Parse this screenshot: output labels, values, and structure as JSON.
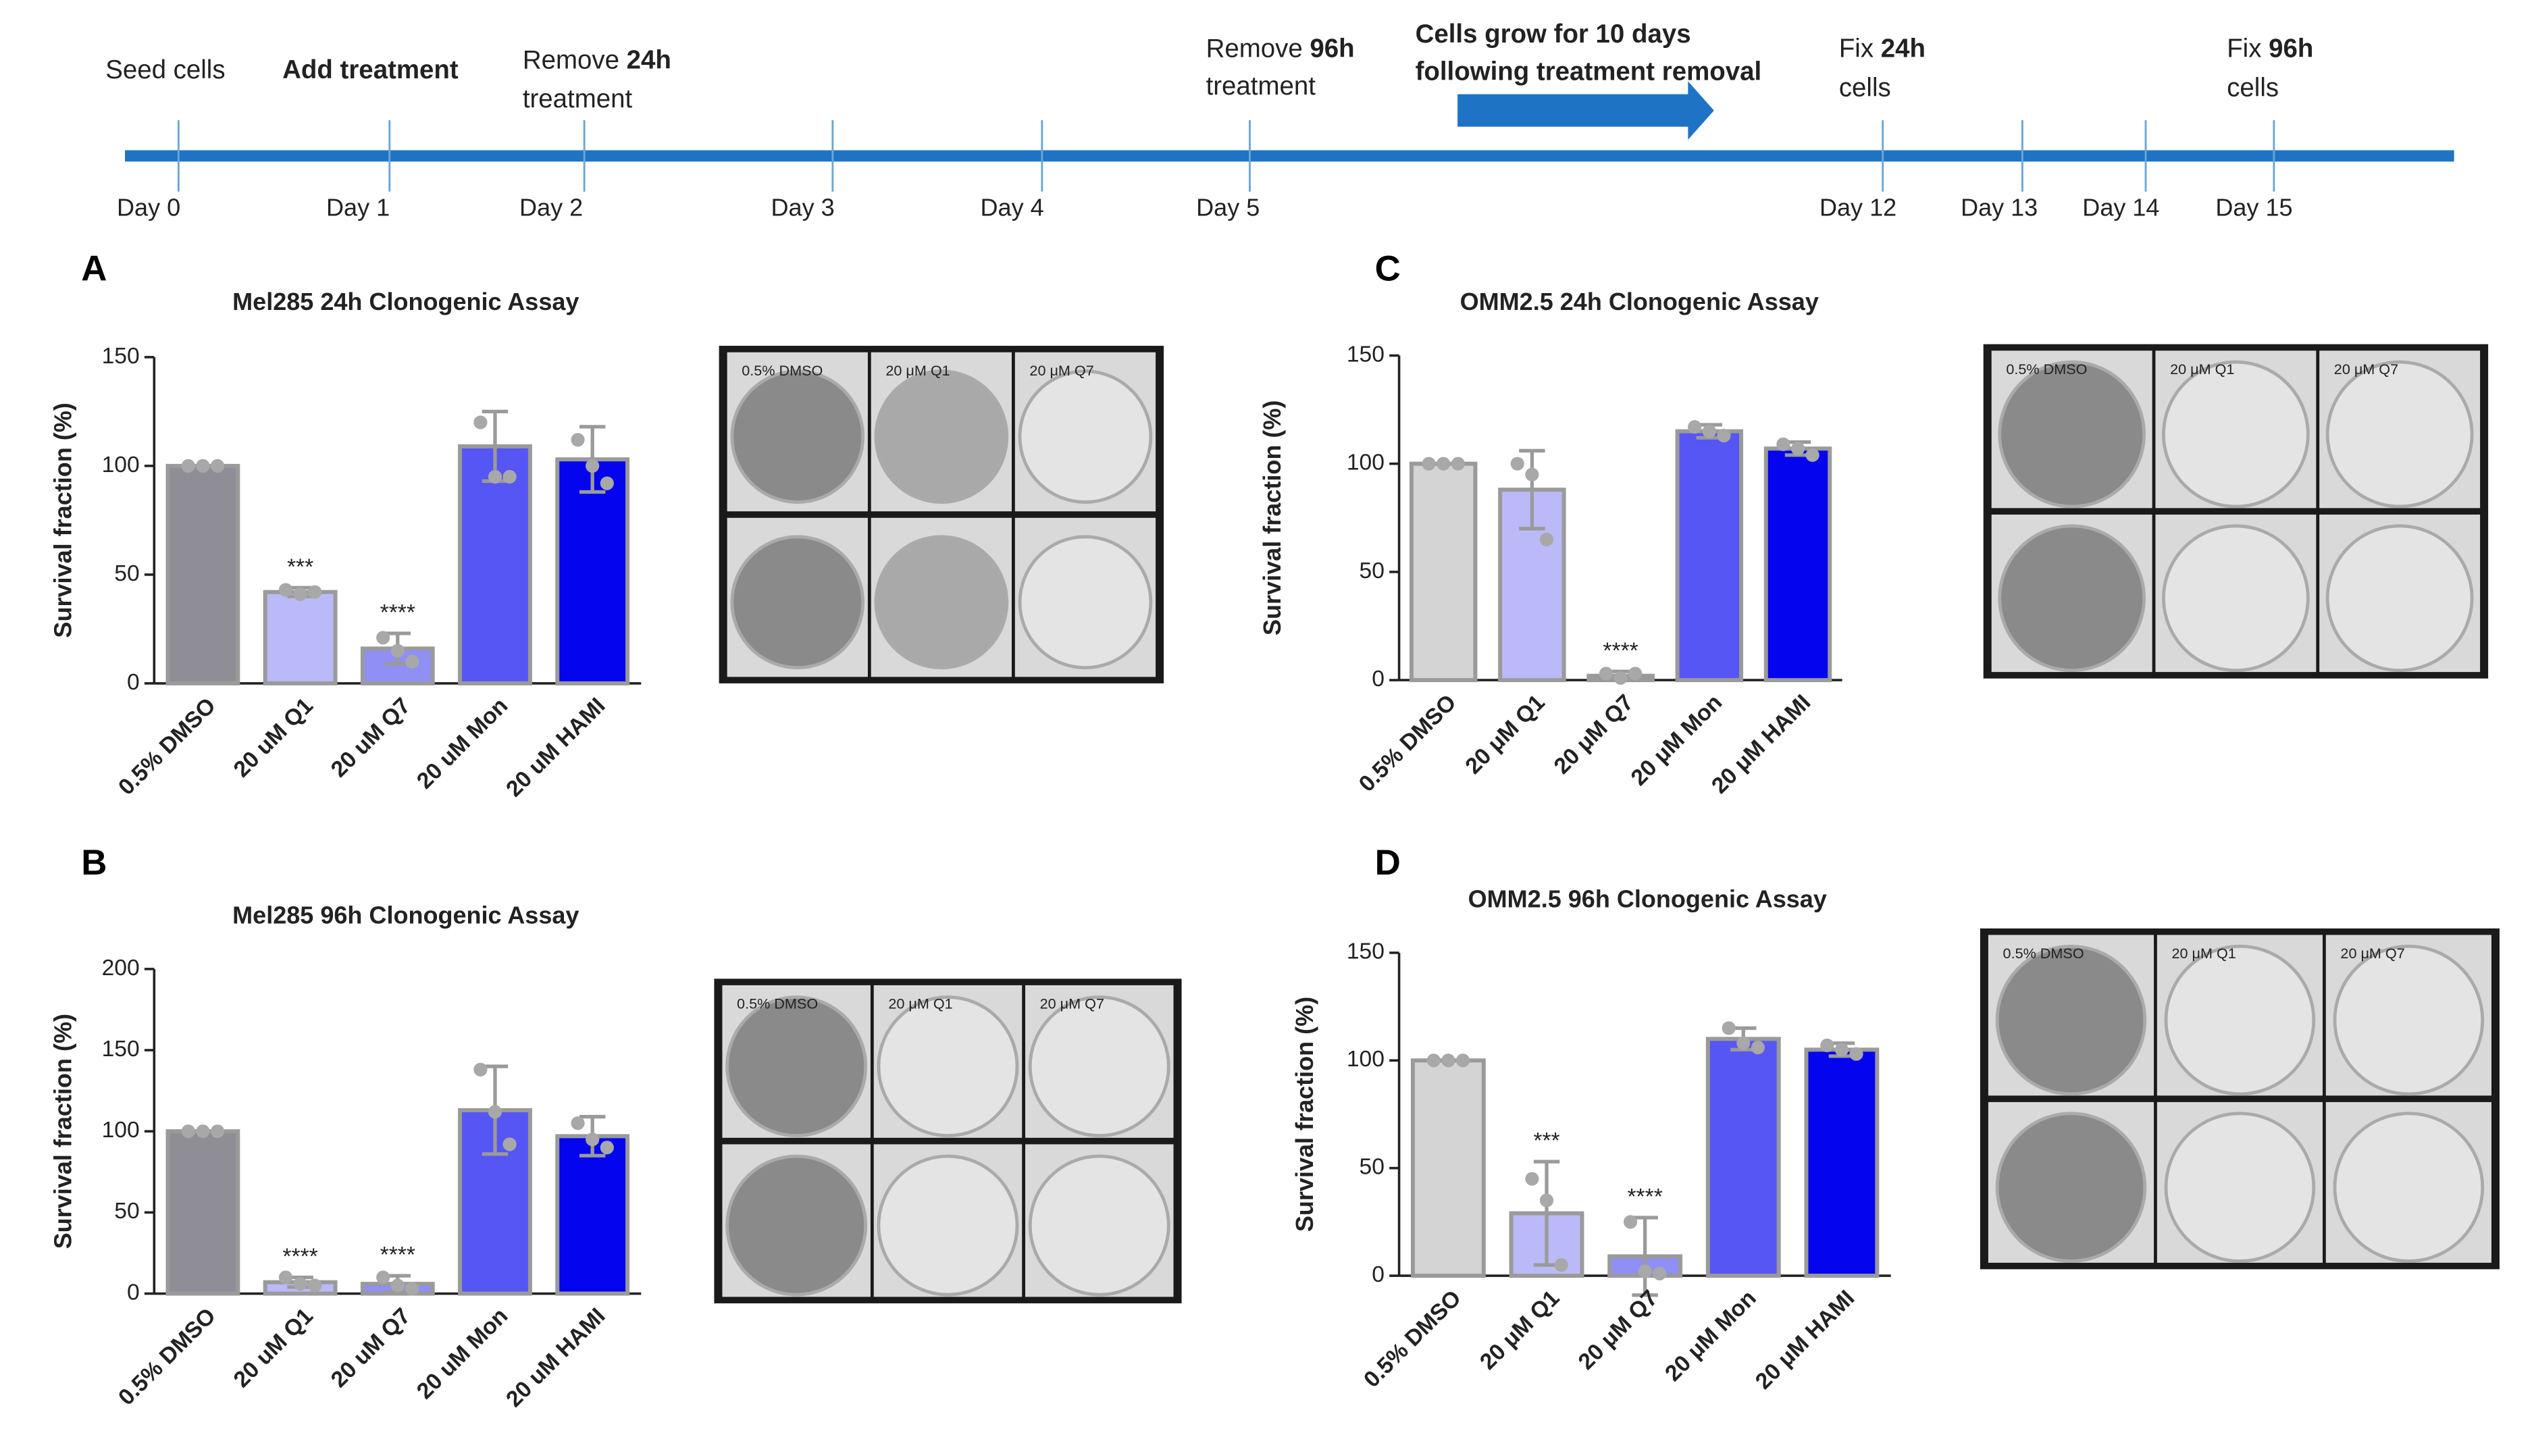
{
  "timeline": {
    "events": [
      {
        "lines": [
          [
            {
              "text": "Seed cells"
            }
          ]
        ]
      },
      {
        "lines": [
          [
            {
              "text": "Add treatment",
              "bold": true
            }
          ]
        ]
      },
      {
        "lines": [
          [
            {
              "text": "Remove "
            },
            {
              "text": "24h",
              "bold": true
            }
          ],
          [
            {
              "text": "treatment"
            }
          ]
        ]
      },
      {
        "lines": [
          [
            {
              "text": "Remove "
            },
            {
              "text": "96h",
              "bold": true
            }
          ],
          [
            {
              "text": "treatment"
            }
          ]
        ]
      },
      {
        "lines": [
          [
            {
              "text": "Cells grow for 10 days",
              "bold": true
            }
          ],
          [
            {
              "text": "following treatment removal",
              "bold": true
            }
          ]
        ]
      },
      {
        "lines": [
          [
            {
              "text": "Fix "
            },
            {
              "text": "24h",
              "bold": true
            }
          ],
          [
            {
              "text": "cells"
            }
          ]
        ]
      },
      {
        "lines": [
          [
            {
              "text": "Fix "
            },
            {
              "text": "96h",
              "bold": true
            }
          ],
          [
            {
              "text": "cells"
            }
          ]
        ]
      }
    ],
    "days": [
      "Day 0",
      "Day 1",
      "Day 2",
      "Day 3",
      "Day 4",
      "Day 5",
      "Day 12",
      "Day 13",
      "Day 14",
      "Day 15"
    ]
  },
  "chart_data": [
    {
      "type": "bar",
      "panel": "A",
      "title": "Mel285 24h Clonogenic Assay",
      "ylabel": "Survival fraction (%)",
      "categories": [
        "0.5% DMSO",
        "20 uM Q1",
        "20 uM Q7",
        "20 uM Mon",
        "20 uM HAMI"
      ],
      "values": [
        100,
        42,
        16,
        109,
        103
      ],
      "errors": [
        0,
        2,
        7,
        16,
        15
      ],
      "points": [
        [
          100,
          100,
          100
        ],
        [
          43,
          41,
          42
        ],
        [
          21,
          15,
          10
        ],
        [
          120,
          95,
          95
        ],
        [
          112,
          100,
          92
        ]
      ],
      "annotations": [
        null,
        "***",
        "****",
        null,
        null
      ],
      "colors": [
        "#8f8e96",
        "#babaf8",
        "#8f8ff6",
        "#5656f4",
        "#0404ee"
      ],
      "ylim": [
        0,
        150
      ],
      "yticks": [
        0,
        50,
        100,
        150
      ],
      "plate_labels": [
        "0.5% DMSO",
        "20 μM Q1",
        "20 μM Q7"
      ]
    },
    {
      "type": "bar",
      "panel": "B",
      "title": "Mel285 96h Clonogenic Assay",
      "ylabel": "Survival fraction (%)",
      "categories": [
        "0.5% DMSO",
        "20 uM Q1",
        "20 uM Q7",
        "20 uM Mon",
        "20 uM HAMI"
      ],
      "values": [
        100,
        7,
        6,
        113,
        97
      ],
      "errors": [
        0,
        3,
        5,
        27,
        12
      ],
      "points": [
        [
          100,
          100,
          100
        ],
        [
          10,
          6,
          5
        ],
        [
          10,
          5,
          3
        ],
        [
          138,
          112,
          92
        ],
        [
          105,
          95,
          90
        ]
      ],
      "annotations": [
        null,
        "****",
        "****",
        null,
        null
      ],
      "colors": [
        "#8f8e96",
        "#babaf8",
        "#8f8ff6",
        "#5656f4",
        "#0404ee"
      ],
      "ylim": [
        0,
        200
      ],
      "yticks": [
        0,
        50,
        100,
        150,
        200
      ],
      "plate_labels": [
        "0.5% DMSO",
        "20 μM Q1",
        "20 μM Q7"
      ]
    },
    {
      "type": "bar",
      "panel": "C",
      "title": "OMM2.5 24h Clonogenic Assay",
      "ylabel": "Survival fraction (%)",
      "categories": [
        "0.5% DMSO",
        "20 μM Q1",
        "20 μM Q7",
        "20 μM Mon",
        "20 μM HAMI"
      ],
      "values": [
        100,
        88,
        2,
        115,
        107
      ],
      "errors": [
        0,
        18,
        2,
        3,
        3
      ],
      "points": [
        [
          100,
          100,
          100
        ],
        [
          100,
          95,
          65
        ],
        [
          3,
          1,
          3
        ],
        [
          117,
          115,
          113
        ],
        [
          109,
          107,
          104
        ]
      ],
      "annotations": [
        null,
        null,
        "****",
        null,
        null
      ],
      "colors": [
        "#d4d4d4",
        "#babaf8",
        "#8f8ff6",
        "#5656f4",
        "#0404ee"
      ],
      "ylim": [
        0,
        150
      ],
      "yticks": [
        0,
        50,
        100,
        150
      ],
      "plate_labels": [
        "0.5% DMSO",
        "20 μM Q1",
        "20 μM Q7"
      ]
    },
    {
      "type": "bar",
      "panel": "D",
      "title": "OMM2.5 96h Clonogenic Assay",
      "ylabel": "Survival fraction (%)",
      "categories": [
        "0.5% DMSO",
        "20 μM Q1",
        "20 μM Q7",
        "20 μM Mon",
        "20 μM HAMI"
      ],
      "values": [
        100,
        29,
        9,
        110,
        105
      ],
      "errors": [
        0,
        24,
        18,
        5,
        3
      ],
      "points": [
        [
          100,
          100,
          100
        ],
        [
          45,
          35,
          5
        ],
        [
          25,
          2,
          1
        ],
        [
          115,
          108,
          106
        ],
        [
          107,
          105,
          103
        ]
      ],
      "annotations": [
        null,
        "***",
        "****",
        null,
        null
      ],
      "colors": [
        "#d4d4d4",
        "#babaf8",
        "#8f8ff6",
        "#5656f4",
        "#0404ee"
      ],
      "ylim": [
        0,
        150
      ],
      "yticks": [
        0,
        50,
        100,
        150
      ],
      "plate_labels": [
        "0.5% DMSO",
        "20 μM Q1",
        "20 μM Q7"
      ]
    }
  ]
}
